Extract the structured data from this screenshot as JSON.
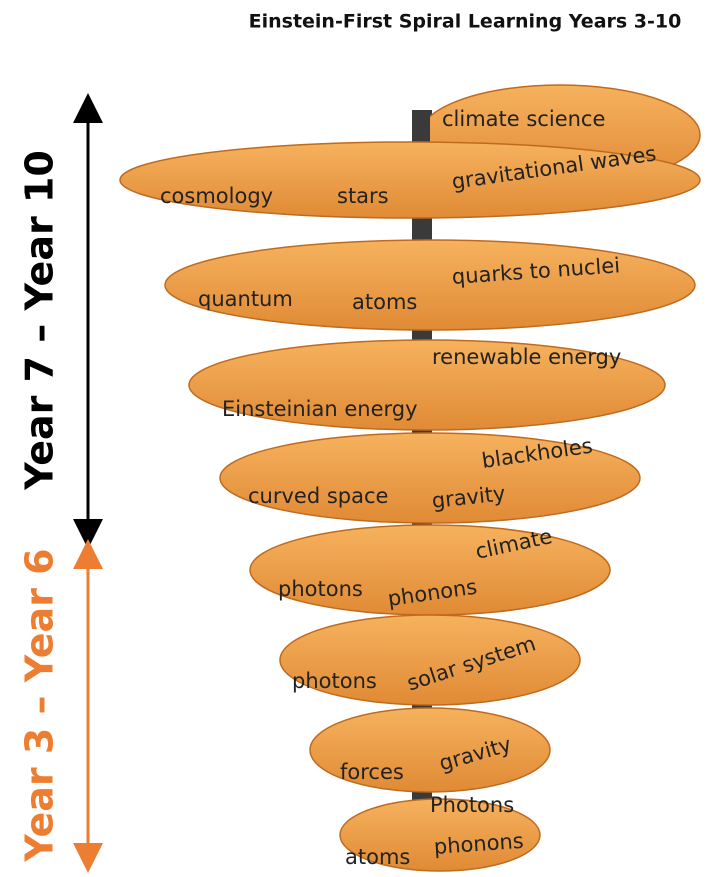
{
  "title": "Einstein-First Spiral Learning Years 3-10",
  "ranges": [
    {
      "label": "Year 7 – Year 10"
    },
    {
      "label": "Year 3 – Year 6"
    }
  ],
  "levels": [
    {
      "topics": [
        "climate science",
        "gravitational waves",
        "cosmology",
        "stars"
      ]
    },
    {
      "topics": [
        "quarks to nuclei",
        "quantum",
        "atoms"
      ]
    },
    {
      "topics": [
        "renewable energy",
        "Einsteinian energy"
      ]
    },
    {
      "topics": [
        "blackholes",
        "curved space",
        "gravity"
      ]
    },
    {
      "topics": [
        "climate",
        "photons",
        "phonons"
      ]
    },
    {
      "topics": [
        "solar system",
        "photons"
      ]
    },
    {
      "topics": [
        "gravity",
        "forces"
      ]
    },
    {
      "topics": [
        "Photons",
        "atoms",
        "phonons"
      ]
    }
  ]
}
